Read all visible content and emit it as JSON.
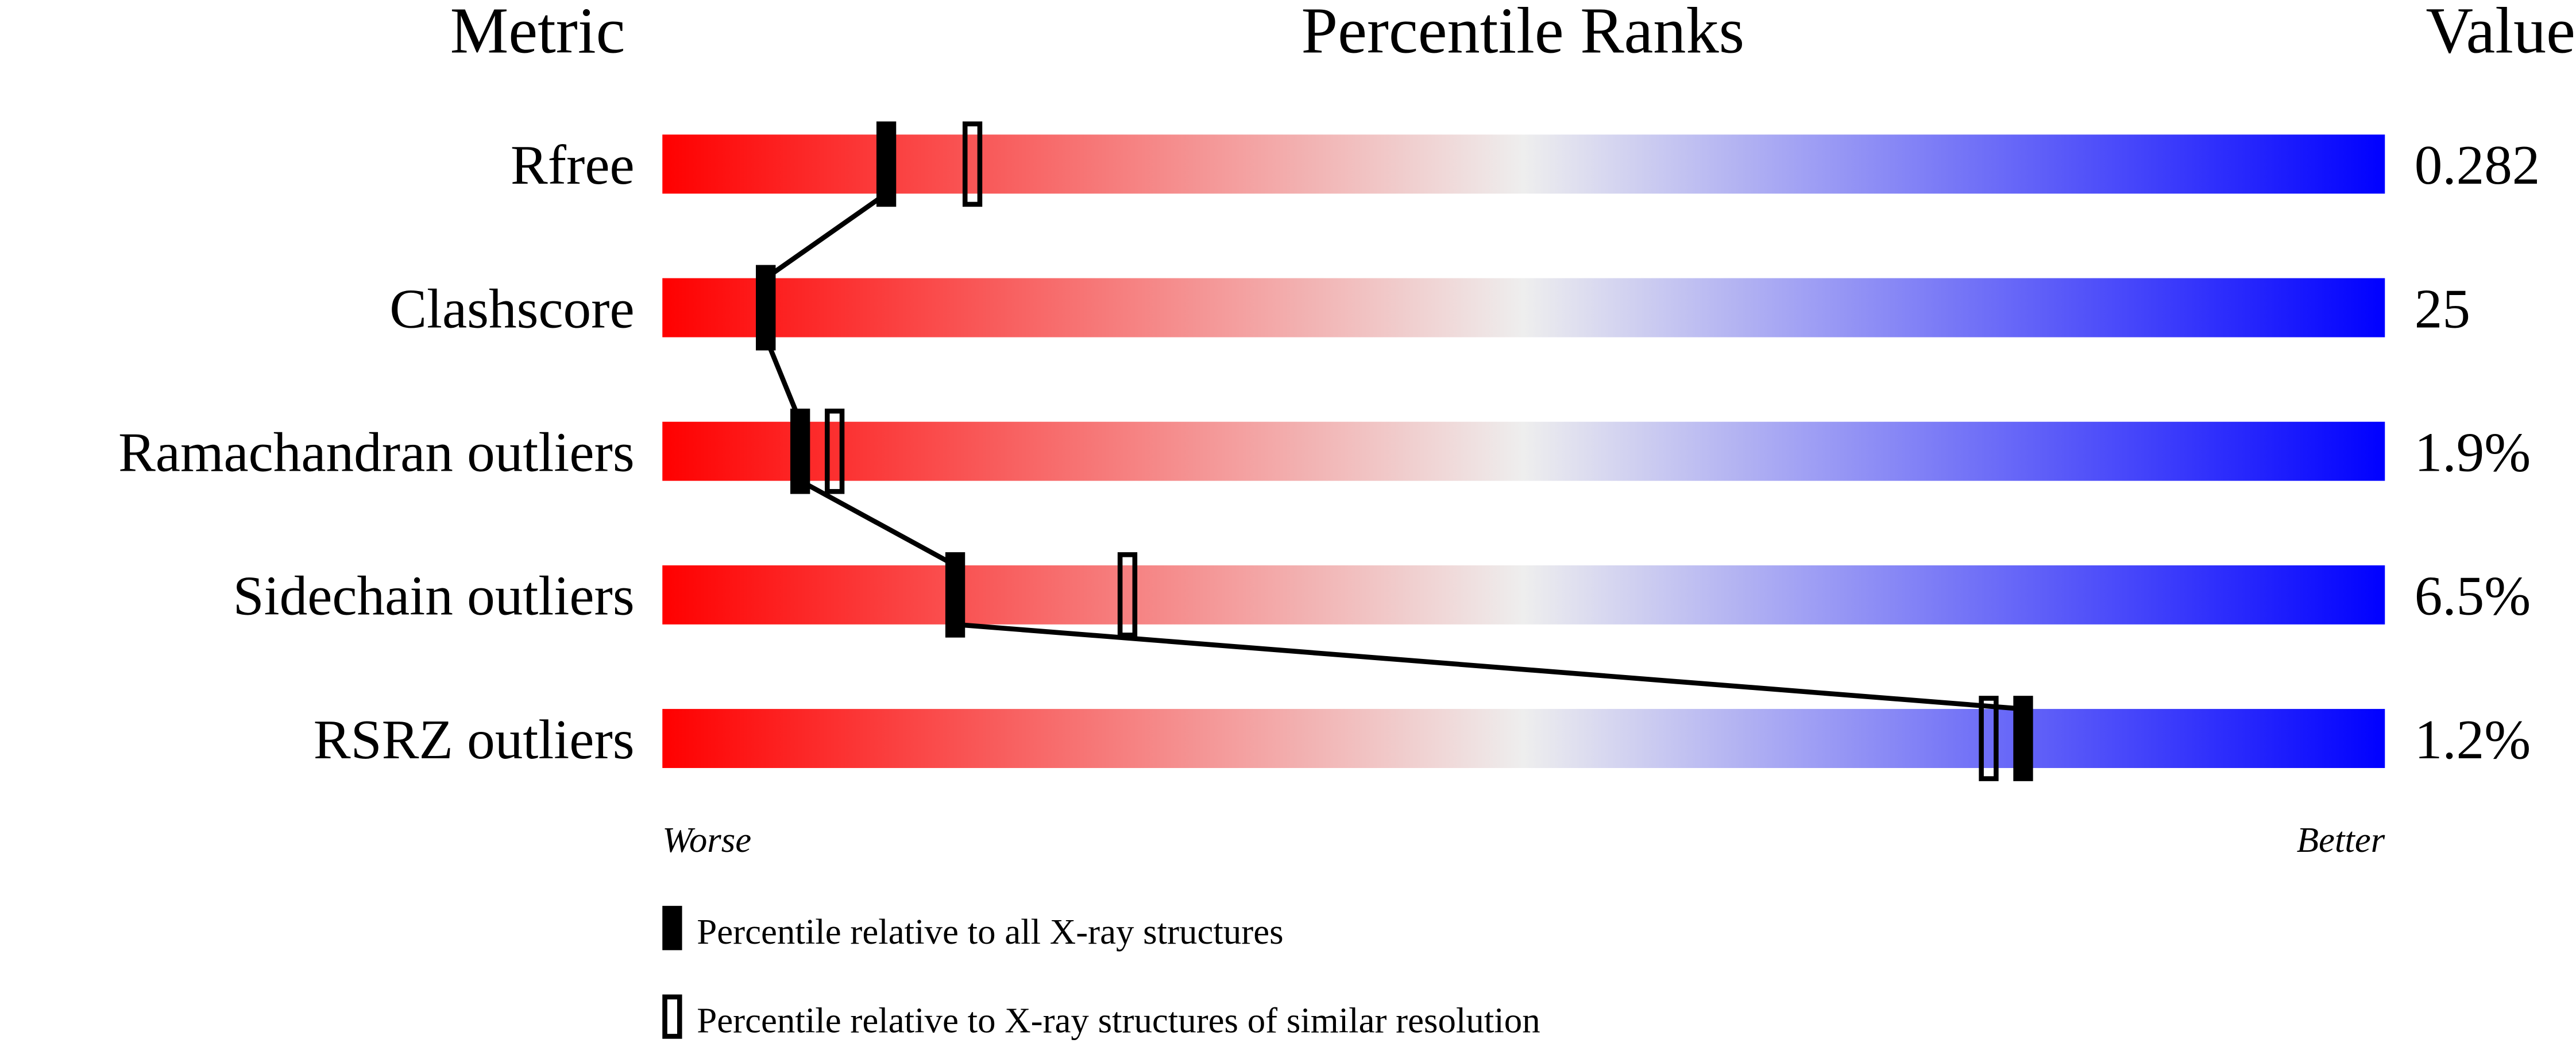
{
  "chart_data": {
    "type": "bar",
    "header": {
      "metric": "Metric",
      "title": "Percentile Ranks",
      "value": "Value"
    },
    "xlim": [
      0,
      100
    ],
    "scale_labels": {
      "left": "Worse",
      "right": "Better"
    },
    "colors": {
      "worse": "#ff0000",
      "middle": "#eeeeee",
      "better": "#0000ff",
      "marker": "#000000"
    },
    "rows": [
      {
        "metric": "Rfree",
        "value": "0.282",
        "percentile_all": 13,
        "percentile_similar": 18
      },
      {
        "metric": "Clashscore",
        "value": "25",
        "percentile_all": 6,
        "percentile_similar": 6
      },
      {
        "metric": "Ramachandran outliers",
        "value": "1.9%",
        "percentile_all": 8,
        "percentile_similar": 10
      },
      {
        "metric": "Sidechain outliers",
        "value": "6.5%",
        "percentile_all": 17,
        "percentile_similar": 27
      },
      {
        "metric": "RSRZ outliers",
        "value": "1.2%",
        "percentile_all": 79,
        "percentile_similar": 77
      }
    ],
    "legend": [
      {
        "marker": "filled",
        "label": "Percentile relative to all X-ray structures"
      },
      {
        "marker": "hollow",
        "label": "Percentile relative to X-ray structures of similar resolution"
      }
    ]
  }
}
